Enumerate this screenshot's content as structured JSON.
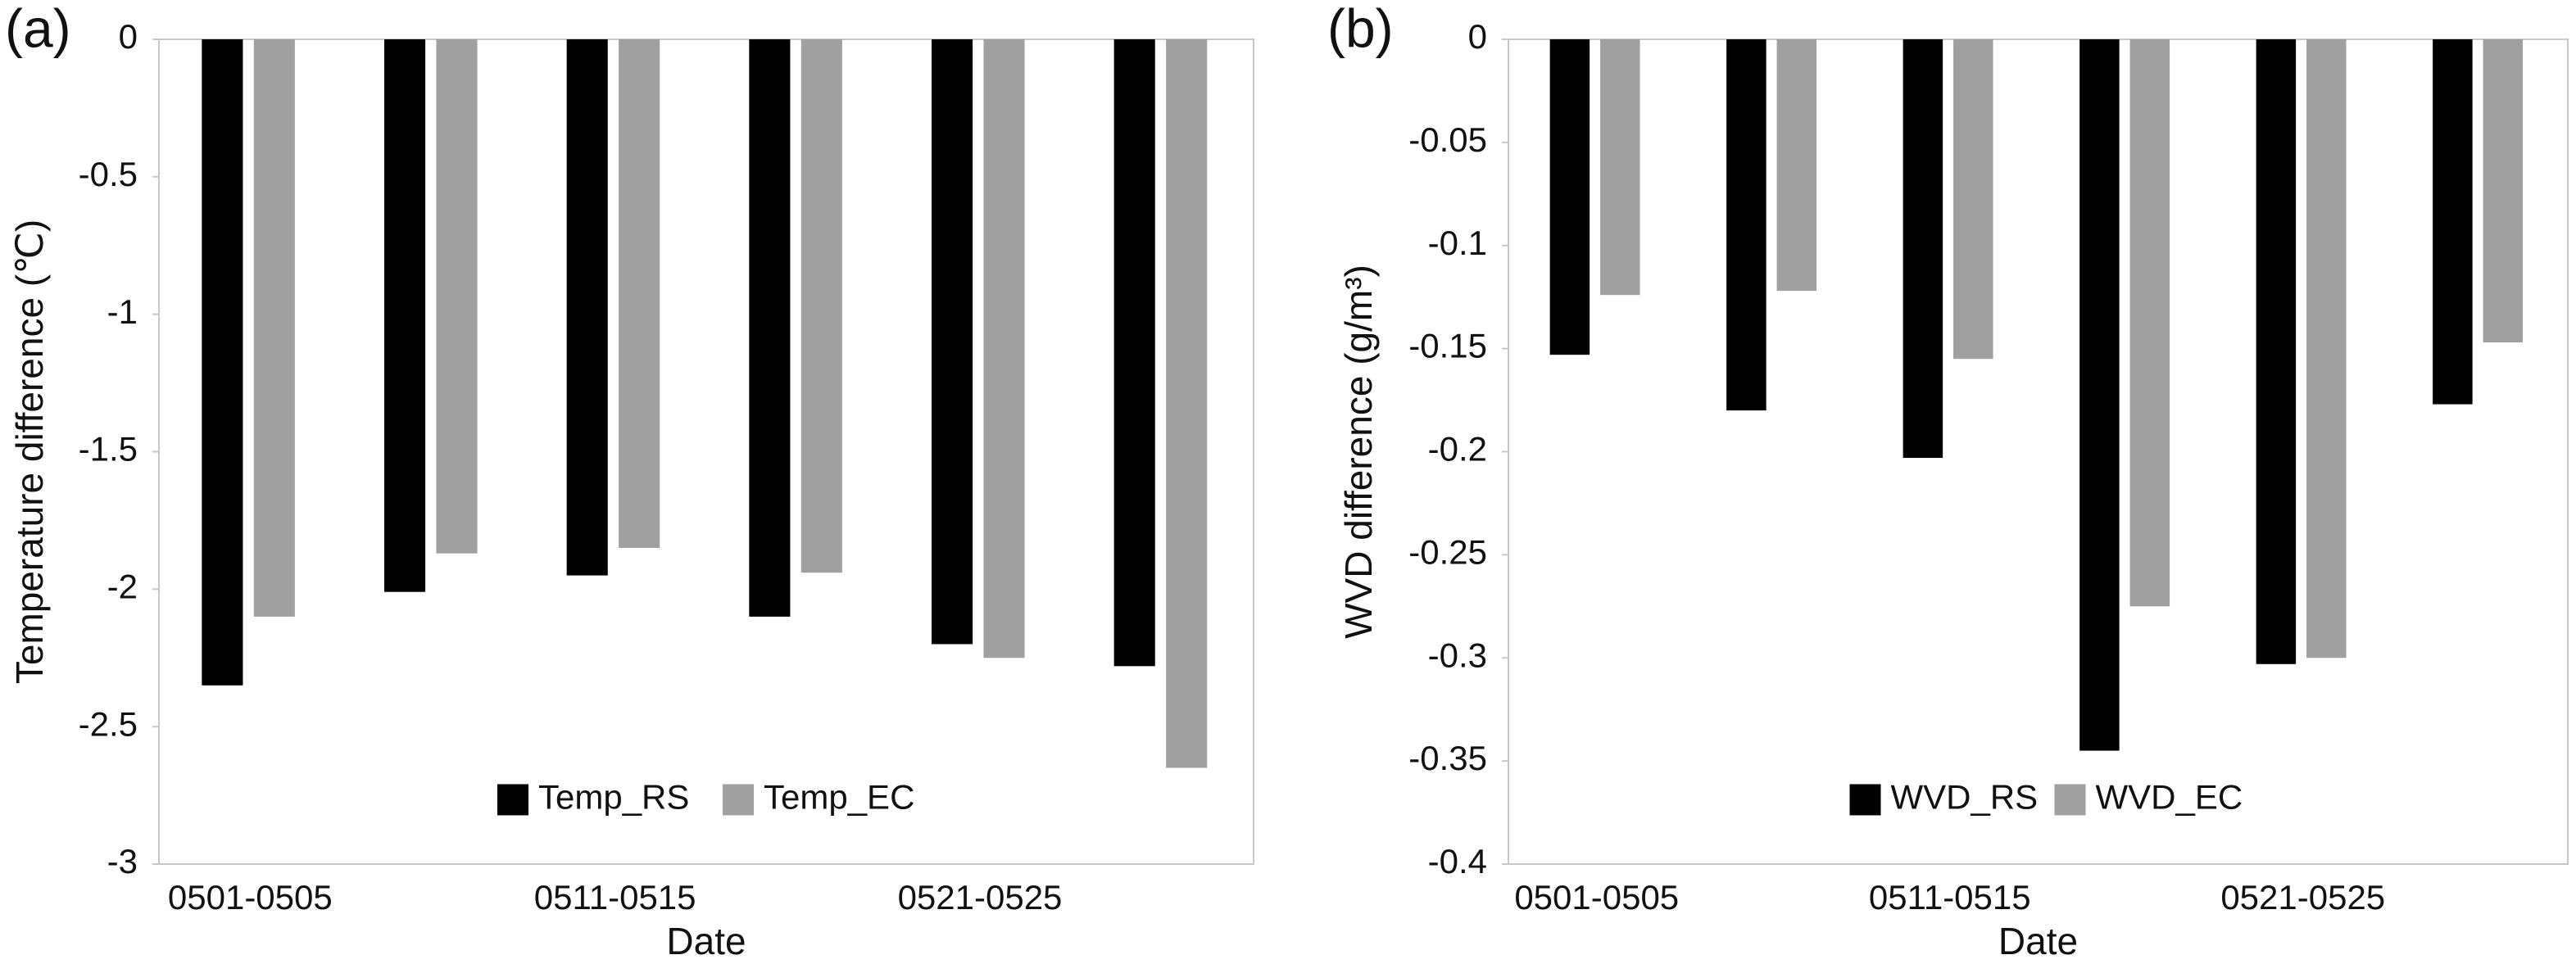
{
  "chart_data": [
    {
      "type": "bar",
      "panel_label": "(a)",
      "xlabel": "Date",
      "ylabel": "Temperature difference (℃)",
      "categories": [
        "0501-0505",
        null,
        "0511-0515",
        null,
        "0521-0525",
        null
      ],
      "series": [
        {
          "name": "Temp_RS",
          "color": "#000000",
          "values": [
            -2.35,
            -2.01,
            -1.95,
            -2.1,
            -2.2,
            -2.28
          ]
        },
        {
          "name": "Temp_EC",
          "color": "#a0a0a0",
          "values": [
            -2.1,
            -1.87,
            -1.85,
            -1.94,
            -2.25,
            -2.65
          ]
        }
      ],
      "ylim": [
        -3,
        0
      ],
      "yticks": [
        0,
        -0.5,
        -1,
        -1.5,
        -2,
        -2.5,
        -3
      ],
      "legend": "lower center"
    },
    {
      "type": "bar",
      "panel_label": "(b)",
      "xlabel": "Date",
      "ylabel": "WVD difference (g/m³)",
      "categories": [
        "0501-0505",
        null,
        "0511-0515",
        null,
        "0521-0525",
        null
      ],
      "series": [
        {
          "name": "WVD_RS",
          "color": "#000000",
          "values": [
            -0.153,
            -0.18,
            -0.203,
            -0.345,
            -0.303,
            -0.177
          ]
        },
        {
          "name": "WVD_EC",
          "color": "#a0a0a0",
          "values": [
            -0.124,
            -0.122,
            -0.155,
            -0.275,
            -0.3,
            -0.147
          ]
        }
      ],
      "ylim": [
        -0.4,
        0
      ],
      "yticks": [
        0,
        -0.05,
        -0.1,
        -0.15,
        -0.2,
        -0.25,
        -0.3,
        -0.35,
        -0.4
      ],
      "legend": "lower center"
    }
  ]
}
